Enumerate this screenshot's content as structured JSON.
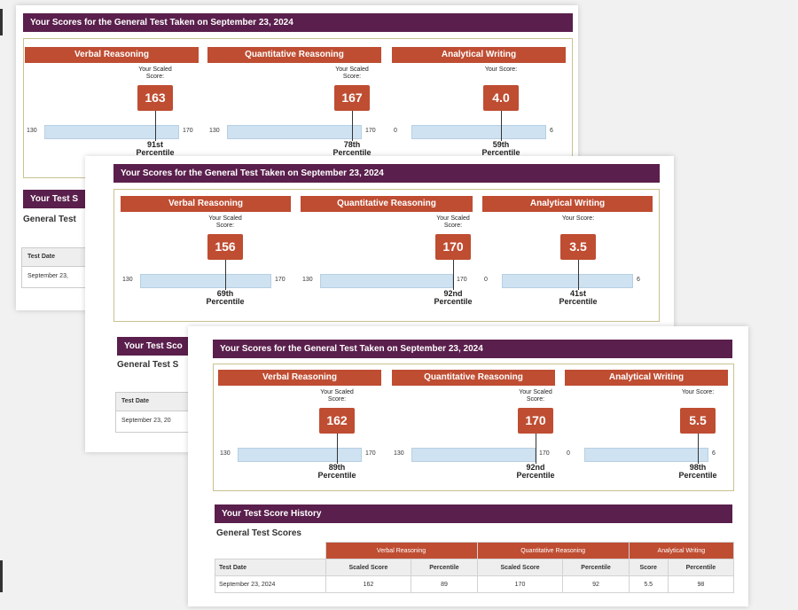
{
  "screenshots": [
    {
      "title": "Your Scores for the General Test Taken on September 23, 2024",
      "sections": [
        {
          "name": "Verbal Reasoning",
          "label": "Your Scaled Score:",
          "score": "163",
          "min": "130",
          "max": "170",
          "percentile": "91st",
          "percentile_word": "Percentile"
        },
        {
          "name": "Quantitative Reasoning",
          "label": "Your Scaled Score:",
          "score": "167",
          "min": "130",
          "max": "170",
          "percentile": "78th",
          "percentile_word": "Percentile"
        },
        {
          "name": "Analytical Writing",
          "label": "Your Score:",
          "score": "4.0",
          "min": "0",
          "max": "6",
          "percentile": "59th",
          "percentile_word": "Percentile"
        }
      ],
      "history_title_partial": "Your Test S",
      "scores_label_partial": "General Test",
      "date_header": "Test Date",
      "date_partial": "September 23,"
    },
    {
      "title": "Your Scores for the General Test Taken on September 23, 2024",
      "sections": [
        {
          "name": "Verbal Reasoning",
          "label": "Your Scaled Score:",
          "score": "156",
          "min": "130",
          "max": "170",
          "percentile": "69th",
          "percentile_word": "Percentile"
        },
        {
          "name": "Quantitative Reasoning",
          "label": "Your Scaled Score:",
          "score": "170",
          "min": "130",
          "max": "170",
          "percentile": "92nd",
          "percentile_word": "Percentile"
        },
        {
          "name": "Analytical Writing",
          "label": "Your Score:",
          "score": "3.5",
          "min": "0",
          "max": "6",
          "percentile": "41st",
          "percentile_word": "Percentile"
        }
      ],
      "history_title_partial": "Your Test Sco",
      "scores_label_partial": "General Test S",
      "date_header": "Test Date",
      "date_partial": "September 23, 20"
    },
    {
      "title": "Your Scores for the General Test Taken on September 23, 2024",
      "sections": [
        {
          "name": "Verbal Reasoning",
          "label": "Your Scaled Score:",
          "score": "162",
          "min": "130",
          "max": "170",
          "percentile": "89th",
          "percentile_word": "Percentile"
        },
        {
          "name": "Quantitative Reasoning",
          "label": "Your Scaled Score:",
          "score": "170",
          "min": "130",
          "max": "170",
          "percentile": "92nd",
          "percentile_word": "Percentile"
        },
        {
          "name": "Analytical Writing",
          "label": "Your Score:",
          "score": "5.5",
          "min": "0",
          "max": "6",
          "percentile": "98th",
          "percentile_word": "Percentile"
        }
      ],
      "history": {
        "title": "Your Test Score History",
        "subtitle": "General Test Scores",
        "groups": [
          "Verbal Reasoning",
          "Quantitative Reasoning",
          "Analytical Writing"
        ],
        "columns": [
          "Test Date",
          "Scaled Score",
          "Percentile",
          "Scaled Score",
          "Percentile",
          "Score",
          "Percentile"
        ],
        "rows": [
          [
            "September 23, 2024",
            "162",
            "89",
            "170",
            "92",
            "5.5",
            "98"
          ]
        ]
      }
    }
  ]
}
